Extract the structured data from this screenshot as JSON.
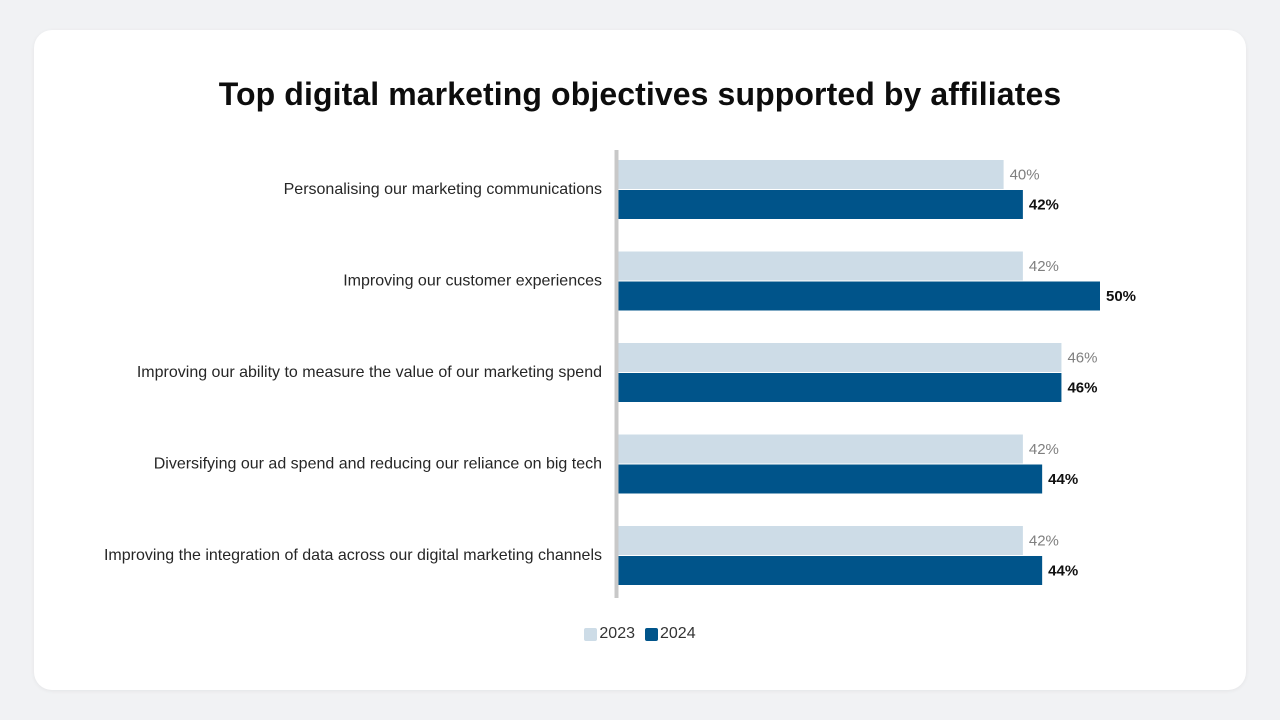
{
  "chart_data": {
    "type": "bar",
    "orientation": "horizontal",
    "title": "Top digital marketing objectives supported by affiliates",
    "categories": [
      "Personalising our marketing communications",
      "Improving our customer experiences",
      "Improving our ability to measure the value of our marketing spend",
      "Diversifying our ad spend and reducing our reliance on big tech",
      "Improving the integration of data across our digital marketing channels"
    ],
    "series": [
      {
        "name": "2023",
        "values": [
          40,
          42,
          46,
          42,
          42
        ],
        "color": "#cddce7"
      },
      {
        "name": "2024",
        "values": [
          42,
          50,
          46,
          44,
          44
        ],
        "color": "#00548a"
      }
    ],
    "value_suffix": "%",
    "xlim": [
      0,
      60
    ],
    "grid": false,
    "legend_position": "bottom"
  }
}
